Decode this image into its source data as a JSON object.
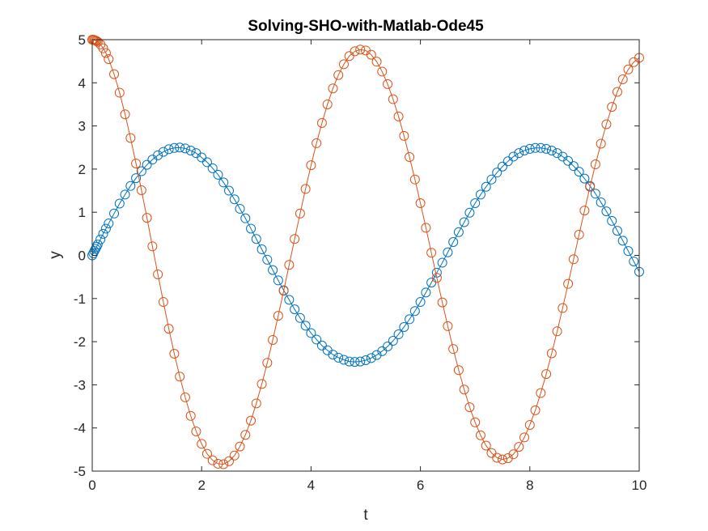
{
  "chart_data": {
    "type": "line",
    "title": "Solving-SHO-with-Matlab-Ode45",
    "xlabel": "t",
    "ylabel": "y",
    "xlim": [
      0,
      10
    ],
    "ylim": [
      -5,
      5
    ],
    "xticks": [
      "0",
      "2",
      "4",
      "6",
      "8",
      "10"
    ],
    "yticks": [
      "-5",
      "-4",
      "-3",
      "-2",
      "-1",
      "0",
      "1",
      "2",
      "3",
      "4",
      "5"
    ],
    "grid": false,
    "legend": "none",
    "marker": "circle",
    "x": [
      0.0,
      0.02,
      0.04,
      0.06,
      0.08,
      0.1,
      0.15,
      0.2,
      0.25,
      0.3,
      0.4,
      0.5,
      0.6,
      0.7,
      0.8,
      0.9,
      1.0,
      1.1,
      1.2,
      1.3,
      1.4,
      1.5,
      1.6,
      1.7,
      1.8,
      1.9,
      2.0,
      2.1,
      2.2,
      2.3,
      2.4,
      2.5,
      2.6,
      2.7,
      2.8,
      2.9,
      3.0,
      3.1,
      3.2,
      3.3,
      3.4,
      3.5,
      3.6,
      3.7,
      3.8,
      3.9,
      4.0,
      4.1,
      4.2,
      4.3,
      4.4,
      4.5,
      4.6,
      4.7,
      4.8,
      4.9,
      5.0,
      5.1,
      5.2,
      5.3,
      5.4,
      5.5,
      5.6,
      5.7,
      5.8,
      5.9,
      6.0,
      6.1,
      6.2,
      6.3,
      6.4,
      6.5,
      6.6,
      6.7,
      6.8,
      6.9,
      7.0,
      7.1,
      7.2,
      7.3,
      7.4,
      7.5,
      7.6,
      7.7,
      7.8,
      7.9,
      8.0,
      8.1,
      8.2,
      8.3,
      8.4,
      8.5,
      8.6,
      8.7,
      8.8,
      8.9,
      9.0,
      9.1,
      9.2,
      9.3,
      9.4,
      9.5,
      9.6,
      9.7,
      9.8,
      9.9,
      10.0
    ],
    "series": [
      {
        "color": "#0072BD",
        "values": [
          0.0,
          0.05,
          0.1,
          0.15,
          0.2,
          0.25,
          0.37,
          0.5,
          0.62,
          0.74,
          0.97,
          1.2,
          1.41,
          1.61,
          1.79,
          1.95,
          2.1,
          2.22,
          2.32,
          2.4,
          2.46,
          2.49,
          2.5,
          2.48,
          2.43,
          2.37,
          2.27,
          2.16,
          2.02,
          1.87,
          1.69,
          1.5,
          1.3,
          1.08,
          0.86,
          0.62,
          0.38,
          0.14,
          -0.1,
          -0.34,
          -0.58,
          -0.81,
          -1.03,
          -1.25,
          -1.45,
          -1.63,
          -1.8,
          -1.95,
          -2.09,
          -2.2,
          -2.3,
          -2.37,
          -2.42,
          -2.46,
          -2.47,
          -2.46,
          -2.43,
          -2.38,
          -2.31,
          -2.22,
          -2.11,
          -1.98,
          -1.83,
          -1.66,
          -1.48,
          -1.29,
          -1.08,
          -0.86,
          -0.63,
          -0.4,
          -0.17,
          0.07,
          0.31,
          0.54,
          0.77,
          0.99,
          1.21,
          1.41,
          1.59,
          1.76,
          1.92,
          2.06,
          2.18,
          2.29,
          2.37,
          2.43,
          2.47,
          2.49,
          2.49,
          2.47,
          2.43,
          2.37,
          2.29,
          2.19,
          2.07,
          1.94,
          1.78,
          1.61,
          1.43,
          1.23,
          1.02,
          0.8,
          0.57,
          0.34,
          0.1,
          -0.14,
          -0.38
        ]
      },
      {
        "color": "#D95319",
        "values": [
          5.0,
          5.0,
          4.99,
          4.98,
          4.97,
          4.95,
          4.89,
          4.8,
          4.69,
          4.55,
          4.2,
          3.77,
          3.27,
          2.72,
          2.13,
          1.51,
          0.87,
          0.21,
          -0.44,
          -1.08,
          -1.7,
          -2.28,
          -2.81,
          -3.29,
          -3.72,
          -4.08,
          -4.37,
          -4.6,
          -4.75,
          -4.83,
          -4.84,
          -4.77,
          -4.64,
          -4.43,
          -4.16,
          -3.83,
          -3.43,
          -2.98,
          -2.49,
          -1.96,
          -1.4,
          -0.82,
          -0.22,
          0.38,
          0.97,
          1.54,
          2.09,
          2.6,
          3.07,
          3.5,
          3.87,
          4.18,
          4.43,
          4.62,
          4.73,
          4.77,
          4.75,
          4.65,
          4.49,
          4.26,
          3.97,
          3.62,
          3.22,
          2.77,
          2.28,
          1.76,
          1.21,
          0.64,
          0.06,
          -0.52,
          -1.09,
          -1.64,
          -2.17,
          -2.66,
          -3.11,
          -3.52,
          -3.87,
          -4.17,
          -4.41,
          -4.58,
          -4.69,
          -4.73,
          -4.7,
          -4.61,
          -4.44,
          -4.22,
          -3.93,
          -3.59,
          -3.19,
          -2.75,
          -2.27,
          -1.76,
          -1.22,
          -0.66,
          -0.09,
          0.48,
          1.04,
          1.59,
          2.11,
          2.59,
          3.04,
          3.44,
          3.79,
          4.08,
          4.31,
          4.48,
          4.58
        ]
      }
    ]
  }
}
